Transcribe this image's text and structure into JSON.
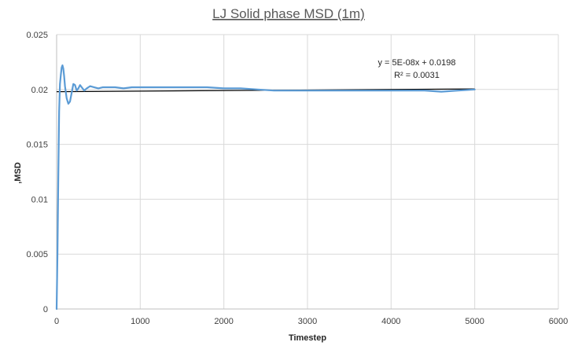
{
  "chart_data": {
    "type": "line",
    "title": "LJ Solid phase MSD (1m)",
    "xlabel": "Timestep",
    "ylabel": ",MSD",
    "xlim": [
      0,
      6000
    ],
    "ylim": [
      0,
      0.025
    ],
    "x_ticks": [
      "0",
      "1000",
      "2000",
      "3000",
      "4000",
      "5000",
      "6000"
    ],
    "y_ticks": [
      "0",
      "0.005",
      "0.01",
      "0.015",
      "0.02",
      "0.025"
    ],
    "grid": true,
    "legend": "none",
    "series": [
      {
        "color": "#5b9bd5",
        "x": [
          0,
          10,
          20,
          30,
          40,
          50,
          60,
          70,
          80,
          90,
          100,
          120,
          140,
          160,
          180,
          200,
          220,
          240,
          260,
          280,
          300,
          330,
          360,
          400,
          450,
          500,
          550,
          600,
          700,
          800,
          900,
          1000,
          1200,
          1400,
          1600,
          1800,
          2000,
          2200,
          2400,
          2600,
          2800,
          3000,
          3200,
          3400,
          3600,
          3800,
          4000,
          4200,
          4400,
          4600,
          4800,
          5000
        ],
        "y": [
          0,
          0.005,
          0.012,
          0.018,
          0.0205,
          0.0213,
          0.022,
          0.0222,
          0.0219,
          0.0212,
          0.0203,
          0.0192,
          0.0187,
          0.0189,
          0.0197,
          0.0205,
          0.0204,
          0.0199,
          0.0201,
          0.0204,
          0.0202,
          0.0199,
          0.0201,
          0.0203,
          0.0202,
          0.0201,
          0.0202,
          0.0202,
          0.0202,
          0.0201,
          0.0202,
          0.0202,
          0.0202,
          0.0202,
          0.0202,
          0.0202,
          0.0201,
          0.0201,
          0.02,
          0.0199,
          0.0199,
          0.0199,
          0.0199,
          0.0199,
          0.0199,
          0.0199,
          0.0199,
          0.0199,
          0.0199,
          0.0198,
          0.0199,
          0.02
        ]
      }
    ],
    "trendline": {
      "color": "#000000",
      "slope": 5e-08,
      "intercept": 0.0198,
      "x_range": [
        0,
        5000
      ],
      "equation": "y = 5E-08x + 0.0198",
      "r2_label": "R² = 0.0031"
    }
  }
}
